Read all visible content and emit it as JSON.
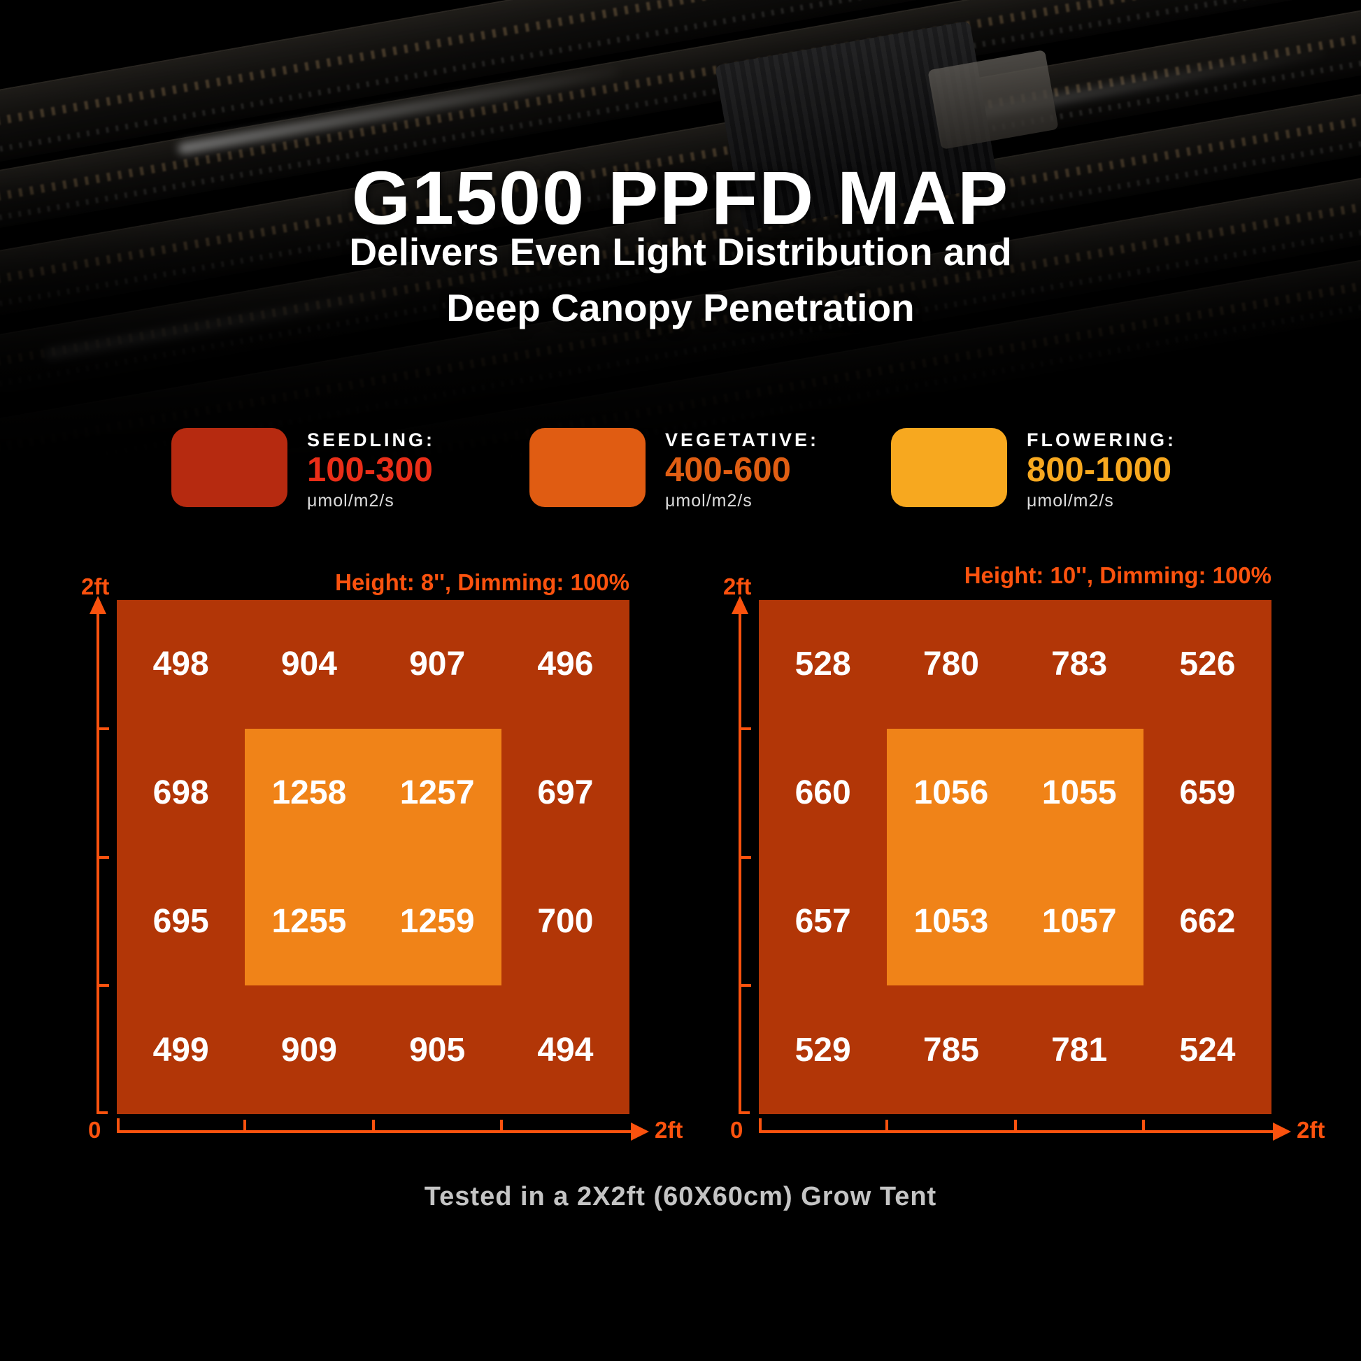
{
  "header": {
    "title": "G1500 PPFD MAP",
    "subtitle_line1": "Delivers Even Light Distribution and",
    "subtitle_line2": "Deep Canopy Penetration"
  },
  "legend": {
    "items": [
      {
        "stage": "SEEDLING:",
        "range": "100-300",
        "unit": "μmol/m2/s",
        "swatch_color": "#b62a10",
        "range_color": "#ea2e18"
      },
      {
        "stage": "VEGETATIVE:",
        "range": "400-600",
        "unit": "μmol/m2/s",
        "swatch_color": "#e05c12",
        "range_color": "#e05e13"
      },
      {
        "stage": "FLOWERING:",
        "range": "800-1000",
        "unit": "μmol/m2/s",
        "swatch_color": "#f7a81f",
        "range_color": "#f7a81f"
      }
    ]
  },
  "chart_data": [
    {
      "type": "heatmap",
      "title": "Height: 8'', Dimming: 100%",
      "unit": "μmol/m2/s",
      "axis": {
        "x_min_label": "0",
        "x_max_label": "2ft",
        "y_max_label": "2ft",
        "x_range_ft": [
          0,
          2
        ],
        "y_range_ft": [
          0,
          2
        ]
      },
      "rows": [
        [
          498,
          904,
          907,
          496
        ],
        [
          698,
          1258,
          1257,
          697
        ],
        [
          695,
          1255,
          1259,
          700
        ],
        [
          499,
          909,
          905,
          494
        ]
      ],
      "highlight": {
        "note": "center 2x2 cells on bright orange block",
        "rows": [
          1,
          2
        ],
        "cols": [
          1,
          2
        ]
      }
    },
    {
      "type": "heatmap",
      "title": "Height: 10'', Dimming: 100%",
      "unit": "μmol/m2/s",
      "axis": {
        "x_min_label": "0",
        "x_max_label": "2ft",
        "y_max_label": "2ft",
        "x_range_ft": [
          0,
          2
        ],
        "y_range_ft": [
          0,
          2
        ]
      },
      "rows": [
        [
          528,
          780,
          783,
          526
        ],
        [
          660,
          1056,
          1055,
          659
        ],
        [
          657,
          1053,
          1057,
          662
        ],
        [
          529,
          785,
          781,
          524
        ]
      ],
      "highlight": {
        "note": "center 2x2 cells on bright orange block",
        "rows": [
          1,
          2
        ],
        "cols": [
          1,
          2
        ]
      }
    }
  ],
  "footer": {
    "note": "Tested in a 2X2ft (60X60cm) Grow Tent"
  },
  "colors": {
    "background": "#000000",
    "accent_axis_orange": "#fb520e",
    "chart_base": "#b23607",
    "chart_highlight": "#f08318",
    "value_text": "#ffffff",
    "footnote_gray": "#c4c4c4"
  }
}
